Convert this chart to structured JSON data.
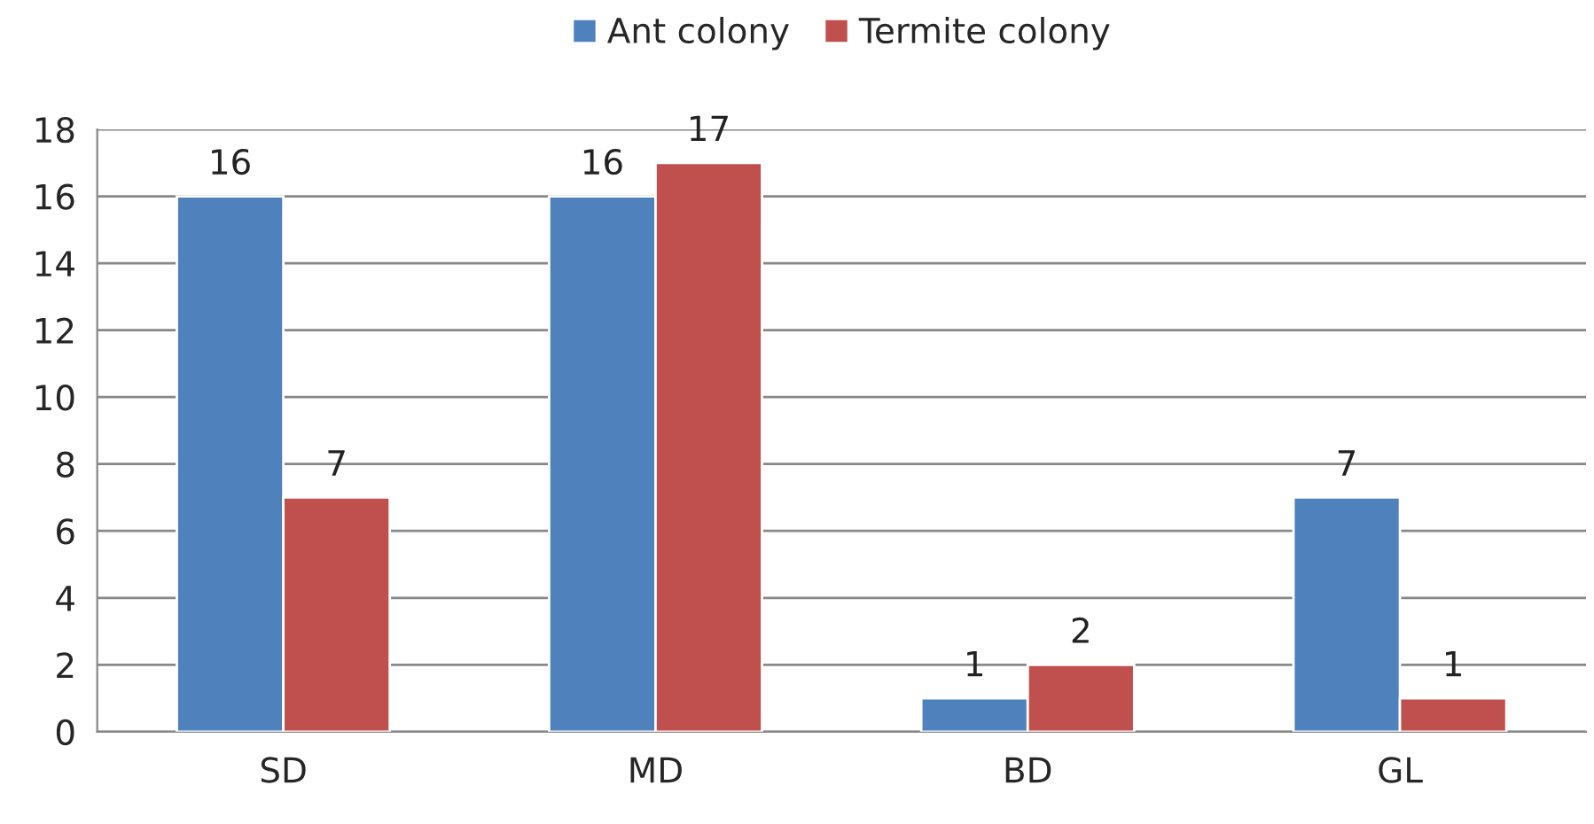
{
  "chart_data": {
    "type": "bar",
    "categories": [
      "SD",
      "MD",
      "BD",
      "GL"
    ],
    "series": [
      {
        "name": "Ant colony",
        "color": "#4f81bd",
        "values": [
          16,
          16,
          1,
          7
        ]
      },
      {
        "name": "Termite colony",
        "color": "#c0504d",
        "values": [
          7,
          17,
          2,
          1
        ]
      }
    ],
    "ylim": [
      0,
      18
    ],
    "yticks": [
      0,
      2,
      4,
      6,
      8,
      10,
      12,
      14,
      16,
      18
    ],
    "grid": "y",
    "legend": "top",
    "data_labels": true
  }
}
